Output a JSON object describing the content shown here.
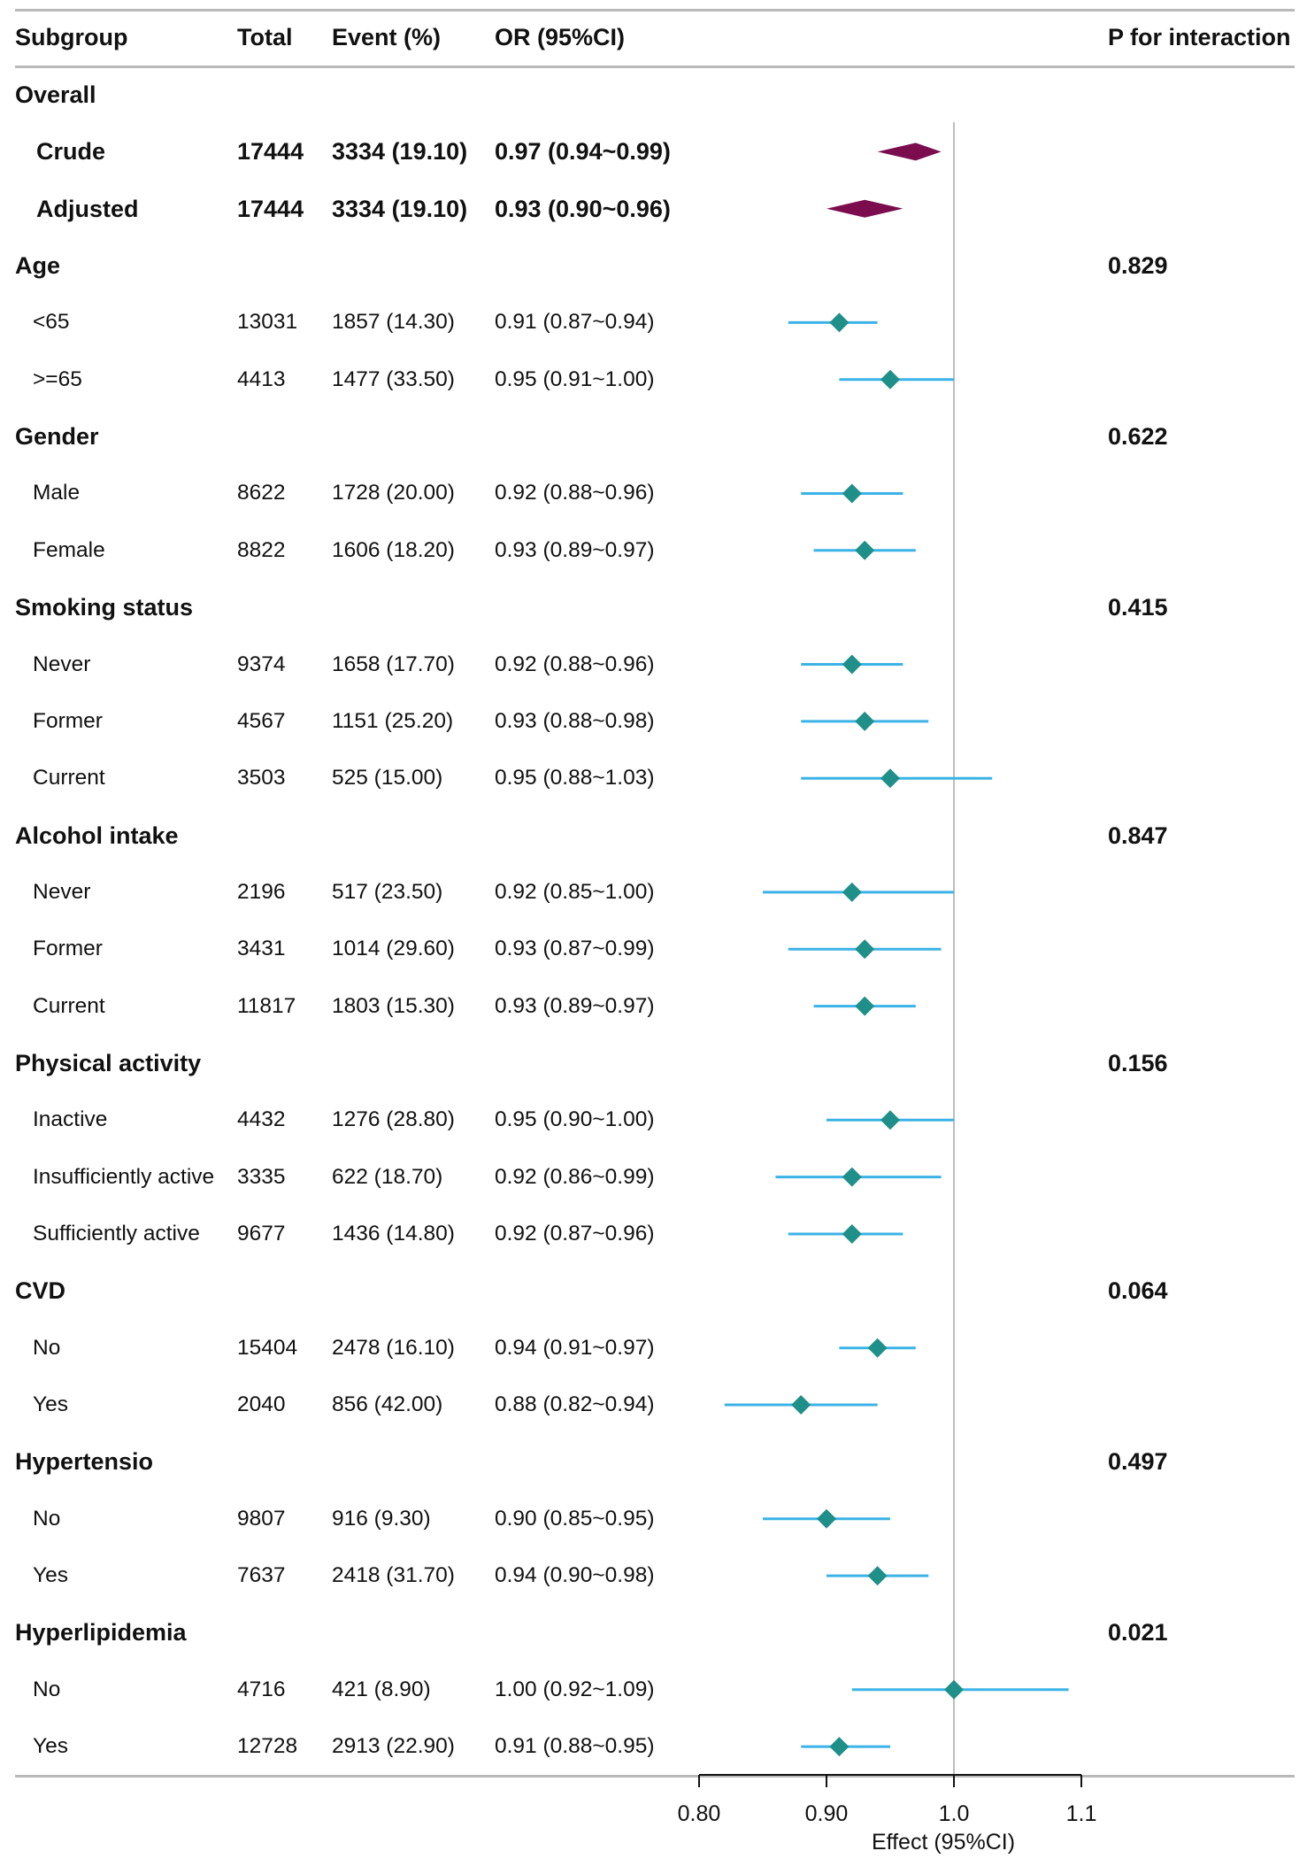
{
  "headers": {
    "subgroup": "Subgroup",
    "total": "Total",
    "event": "Event (%)",
    "or": "OR (95%CI)",
    "p": "P for interaction"
  },
  "chart_data": {
    "type": "forest",
    "xlabel": "Effect (95%CI)",
    "xlim": [
      0.8,
      1.1
    ],
    "reference_line": 1.0,
    "x_ticks": [
      {
        "value": 0.8,
        "label": "0.80"
      },
      {
        "value": 0.9,
        "label": "0.90"
      },
      {
        "value": 1.0,
        "label": "1.0"
      },
      {
        "value": 1.1,
        "label": "1.1"
      }
    ],
    "colors": {
      "overall": "#7b0d4f",
      "subgroup_point": "#1f8f8a",
      "subgroup_ci": "#3bb3e6",
      "reference": "#bdbdbd"
    },
    "rows": [
      {
        "kind": "group",
        "label": "Overall",
        "p": ""
      },
      {
        "kind": "overall",
        "label": "Crude",
        "total": "17444",
        "event": "3334 (19.10)",
        "or_text": "0.97 (0.94~0.99)",
        "est": 0.97,
        "lo": 0.94,
        "hi": 0.99
      },
      {
        "kind": "overall",
        "label": "Adjusted",
        "total": "17444",
        "event": "3334 (19.10)",
        "or_text": "0.93 (0.90~0.96)",
        "est": 0.93,
        "lo": 0.9,
        "hi": 0.96
      },
      {
        "kind": "group",
        "label": "Age",
        "p": "0.829"
      },
      {
        "kind": "sub",
        "label": "<65",
        "total": "13031",
        "event": "1857 (14.30)",
        "or_text": "0.91 (0.87~0.94)",
        "est": 0.91,
        "lo": 0.87,
        "hi": 0.94
      },
      {
        "kind": "sub",
        "label": ">=65",
        "total": "4413",
        "event": "1477 (33.50)",
        "or_text": "0.95 (0.91~1.00)",
        "est": 0.95,
        "lo": 0.91,
        "hi": 1.0
      },
      {
        "kind": "group",
        "label": "Gender",
        "p": "0.622"
      },
      {
        "kind": "sub",
        "label": "Male",
        "total": "8622",
        "event": "1728 (20.00)",
        "or_text": "0.92 (0.88~0.96)",
        "est": 0.92,
        "lo": 0.88,
        "hi": 0.96
      },
      {
        "kind": "sub",
        "label": "Female",
        "total": "8822",
        "event": "1606 (18.20)",
        "or_text": "0.93 (0.89~0.97)",
        "est": 0.93,
        "lo": 0.89,
        "hi": 0.97
      },
      {
        "kind": "group",
        "label": "Smoking status",
        "p": "0.415"
      },
      {
        "kind": "sub",
        "label": "Never",
        "total": "9374",
        "event": "1658 (17.70)",
        "or_text": "0.92 (0.88~0.96)",
        "est": 0.92,
        "lo": 0.88,
        "hi": 0.96
      },
      {
        "kind": "sub",
        "label": "Former",
        "total": "4567",
        "event": "1151 (25.20)",
        "or_text": "0.93 (0.88~0.98)",
        "est": 0.93,
        "lo": 0.88,
        "hi": 0.98
      },
      {
        "kind": "sub",
        "label": "Current",
        "total": "3503",
        "event": "525 (15.00)",
        "or_text": "0.95 (0.88~1.03)",
        "est": 0.95,
        "lo": 0.88,
        "hi": 1.03
      },
      {
        "kind": "group",
        "label": "Alcohol intake",
        "p": "0.847"
      },
      {
        "kind": "sub",
        "label": "Never",
        "total": "2196",
        "event": "517 (23.50)",
        "or_text": "0.92 (0.85~1.00)",
        "est": 0.92,
        "lo": 0.85,
        "hi": 1.0
      },
      {
        "kind": "sub",
        "label": "Former",
        "total": "3431",
        "event": "1014 (29.60)",
        "or_text": "0.93 (0.87~0.99)",
        "est": 0.93,
        "lo": 0.87,
        "hi": 0.99
      },
      {
        "kind": "sub",
        "label": "Current",
        "total": "11817",
        "event": "1803 (15.30)",
        "or_text": "0.93 (0.89~0.97)",
        "est": 0.93,
        "lo": 0.89,
        "hi": 0.97
      },
      {
        "kind": "group",
        "label": "Physical activity",
        "p": "0.156"
      },
      {
        "kind": "sub",
        "label": "Inactive",
        "total": "4432",
        "event": "1276 (28.80)",
        "or_text": "0.95 (0.90~1.00)",
        "est": 0.95,
        "lo": 0.9,
        "hi": 1.0
      },
      {
        "kind": "sub",
        "label": "Insufficiently active",
        "total": "3335",
        "event": "622 (18.70)",
        "or_text": "0.92 (0.86~0.99)",
        "est": 0.92,
        "lo": 0.86,
        "hi": 0.99
      },
      {
        "kind": "sub",
        "label": "Sufficiently active",
        "total": "9677",
        "event": "1436 (14.80)",
        "or_text": "0.92 (0.87~0.96)",
        "est": 0.92,
        "lo": 0.87,
        "hi": 0.96
      },
      {
        "kind": "group",
        "label": "CVD",
        "p": "0.064"
      },
      {
        "kind": "sub",
        "label": "No",
        "total": "15404",
        "event": "2478 (16.10)",
        "or_text": "0.94 (0.91~0.97)",
        "est": 0.94,
        "lo": 0.91,
        "hi": 0.97
      },
      {
        "kind": "sub",
        "label": "Yes",
        "total": "2040",
        "event": "856 (42.00)",
        "or_text": "0.88 (0.82~0.94)",
        "est": 0.88,
        "lo": 0.82,
        "hi": 0.94
      },
      {
        "kind": "group",
        "label": "Hypertensio",
        "p": "0.497"
      },
      {
        "kind": "sub",
        "label": "No",
        "total": "9807",
        "event": "916 (9.30)",
        "or_text": "0.90 (0.85~0.95)",
        "est": 0.9,
        "lo": 0.85,
        "hi": 0.95
      },
      {
        "kind": "sub",
        "label": "Yes",
        "total": "7637",
        "event": "2418 (31.70)",
        "or_text": "0.94 (0.90~0.98)",
        "est": 0.94,
        "lo": 0.9,
        "hi": 0.98
      },
      {
        "kind": "group",
        "label": "Hyperlipidemia",
        "p": "0.021"
      },
      {
        "kind": "sub",
        "label": "No",
        "total": "4716",
        "event": "421 (8.90)",
        "or_text": "1.00 (0.92~1.09)",
        "est": 1.0,
        "lo": 0.92,
        "hi": 1.09
      },
      {
        "kind": "sub",
        "label": "Yes",
        "total": "12728",
        "event": "2913 (22.90)",
        "or_text": "0.91 (0.88~0.95)",
        "est": 0.91,
        "lo": 0.88,
        "hi": 0.95
      }
    ]
  }
}
